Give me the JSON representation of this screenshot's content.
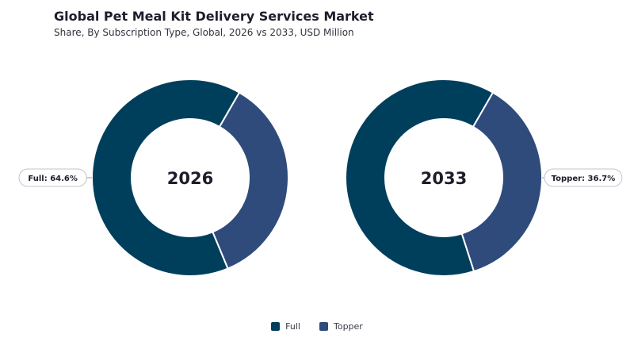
{
  "header": {
    "title": "Global Pet Meal Kit Delivery Services Market",
    "subtitle": "Share, By Subscription Type, Global, 2026 vs 2033, USD Million"
  },
  "colors": {
    "Full": "#003f5c",
    "Topper": "#2f4b7c",
    "background": "#ffffff"
  },
  "chart_data": [
    {
      "type": "pie",
      "donut": true,
      "center_label": "2026",
      "categories": [
        "Full",
        "Topper"
      ],
      "values": [
        64.6,
        35.4
      ],
      "callout": {
        "category": "Full",
        "text": "Full: 64.6%"
      }
    },
    {
      "type": "pie",
      "donut": true,
      "center_label": "2033",
      "categories": [
        "Full",
        "Topper"
      ],
      "values": [
        63.3,
        36.7
      ],
      "callout": {
        "category": "Topper",
        "text": "Topper: 36.7%"
      }
    }
  ],
  "legend": {
    "placement": "bottom-center",
    "items": [
      {
        "label": "Full"
      },
      {
        "label": "Topper"
      }
    ]
  }
}
